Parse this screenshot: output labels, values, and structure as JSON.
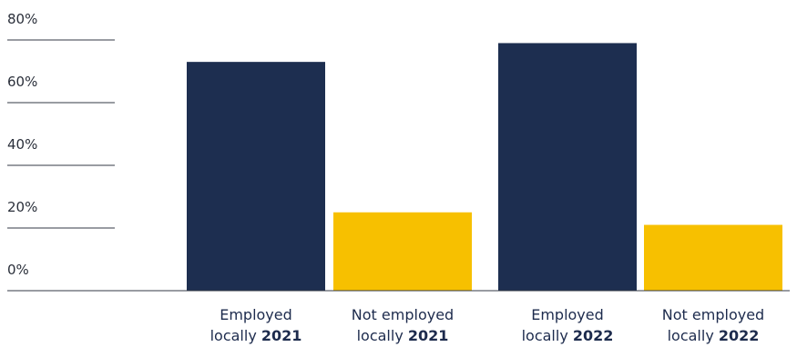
{
  "chart_data": {
    "type": "bar",
    "ylim": [
      0,
      80
    ],
    "yticks": [
      {
        "value": 0,
        "label": "0%"
      },
      {
        "value": 20,
        "label": "20%"
      },
      {
        "value": 40,
        "label": "40%"
      },
      {
        "value": 60,
        "label": "60%"
      },
      {
        "value": 80,
        "label": "80%"
      }
    ],
    "bars": [
      {
        "label_line1": "Employed",
        "label_line2_prefix": "locally",
        "label_year": "2021",
        "value": 73,
        "color": "#1d2e50"
      },
      {
        "label_line1": "Not employed",
        "label_line2_prefix": "locally",
        "label_year": "2021",
        "value": 25,
        "color": "#f7c000"
      },
      {
        "label_line1": "Employed",
        "label_line2_prefix": "locally",
        "label_year": "2022",
        "value": 79,
        "color": "#1d2e50"
      },
      {
        "label_line1": "Not employed",
        "label_line2_prefix": "locally",
        "label_year": "2022",
        "value": 21,
        "color": "#f7c000"
      }
    ],
    "grid": true,
    "legend": "none"
  }
}
